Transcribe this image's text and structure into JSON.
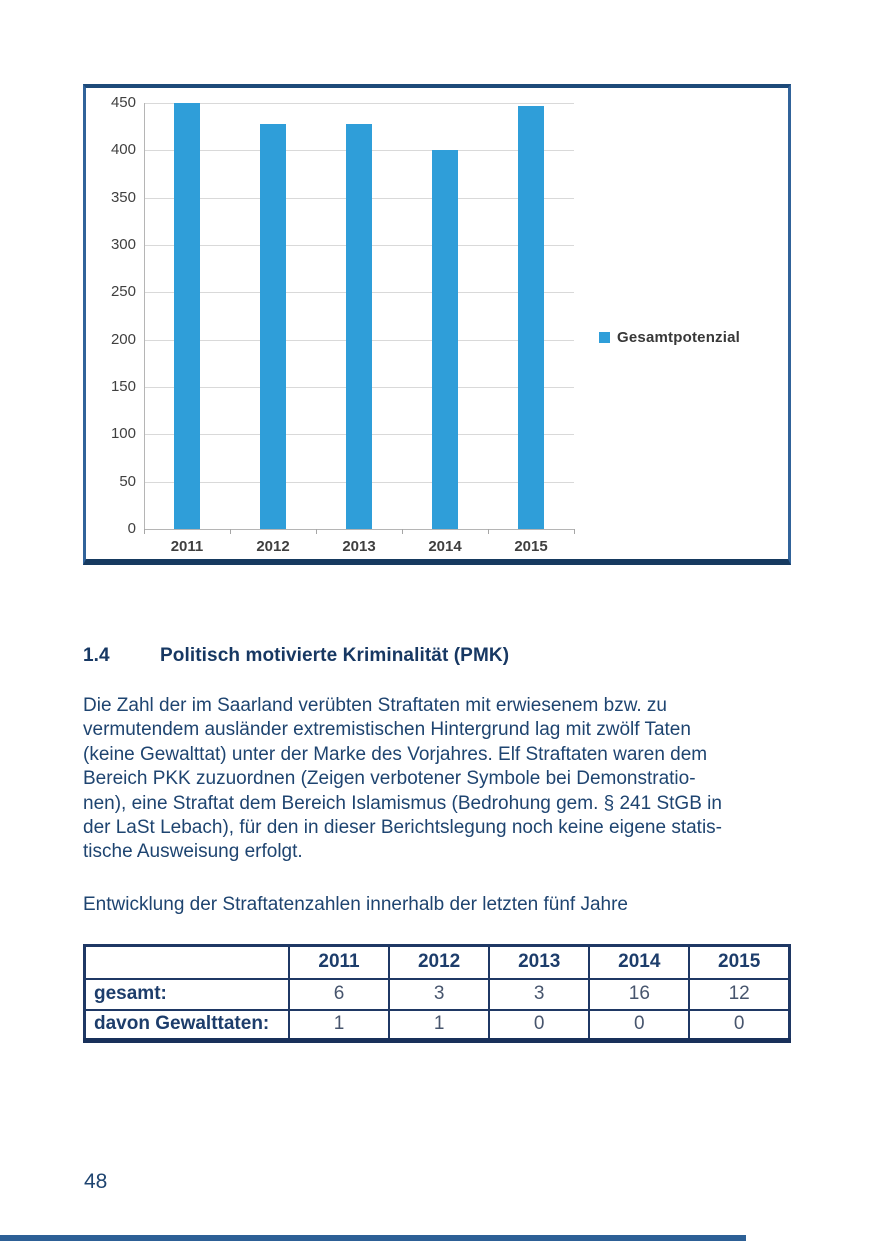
{
  "chart_data": {
    "type": "bar",
    "title": "",
    "xlabel": "",
    "ylabel": "",
    "categories": [
      "2011",
      "2012",
      "2013",
      "2014",
      "2015"
    ],
    "series": [
      {
        "name": "Gesamtpotenzial",
        "values": [
          450,
          428,
          428,
          400,
          447
        ]
      }
    ],
    "ylim": [
      0,
      450
    ],
    "yticks": [
      0,
      50,
      100,
      150,
      200,
      250,
      300,
      350,
      400,
      450
    ],
    "grid": true,
    "legend_position": "right",
    "legend_label": "Gesamtpotenzial",
    "bar_color": "#2f9ed9"
  },
  "section": {
    "number": "1.4",
    "title": "Politisch motivierte Kriminalität (PMK)"
  },
  "paragraph_lines": [
    "Die Zahl der im Saarland verübten Straftaten mit erwiesenem bzw. zu",
    "vermutendem ausländer extremistischen Hintergrund lag mit zwölf Taten",
    "(keine Gewalttat) unter der Marke des Vorjahres. Elf Straftaten waren dem",
    "Bereich PKK zuzuordnen (Zeigen verbotener Symbole bei Demonstratio-",
    "nen), eine Straftat dem Bereich Islamismus (Bedrohung gem. § 241 StGB in",
    "der LaSt Lebach), für den in dieser Berichtslegung noch keine eigene statis-",
    "tische Ausweisung erfolgt."
  ],
  "table_intro": "Entwicklung der Straftatenzahlen innerhalb der letzten fünf Jahre",
  "table": {
    "header": [
      "",
      "2011",
      "2012",
      "2013",
      "2014",
      "2015"
    ],
    "rows": [
      {
        "label": "gesamt:",
        "values": [
          "6",
          "3",
          "3",
          "16",
          "12"
        ]
      },
      {
        "label": "davon Gewalttaten:",
        "values": [
          "1",
          "1",
          "0",
          "0",
          "0"
        ]
      }
    ]
  },
  "page": {
    "number": "48"
  },
  "colors": {
    "bar_blue": "#2f9ed9",
    "chart_border_blue": "#31639a",
    "table_border_navy": "#1f3864",
    "text_navy": "#1e4470",
    "footer_bar_blue": "#2d6096"
  }
}
